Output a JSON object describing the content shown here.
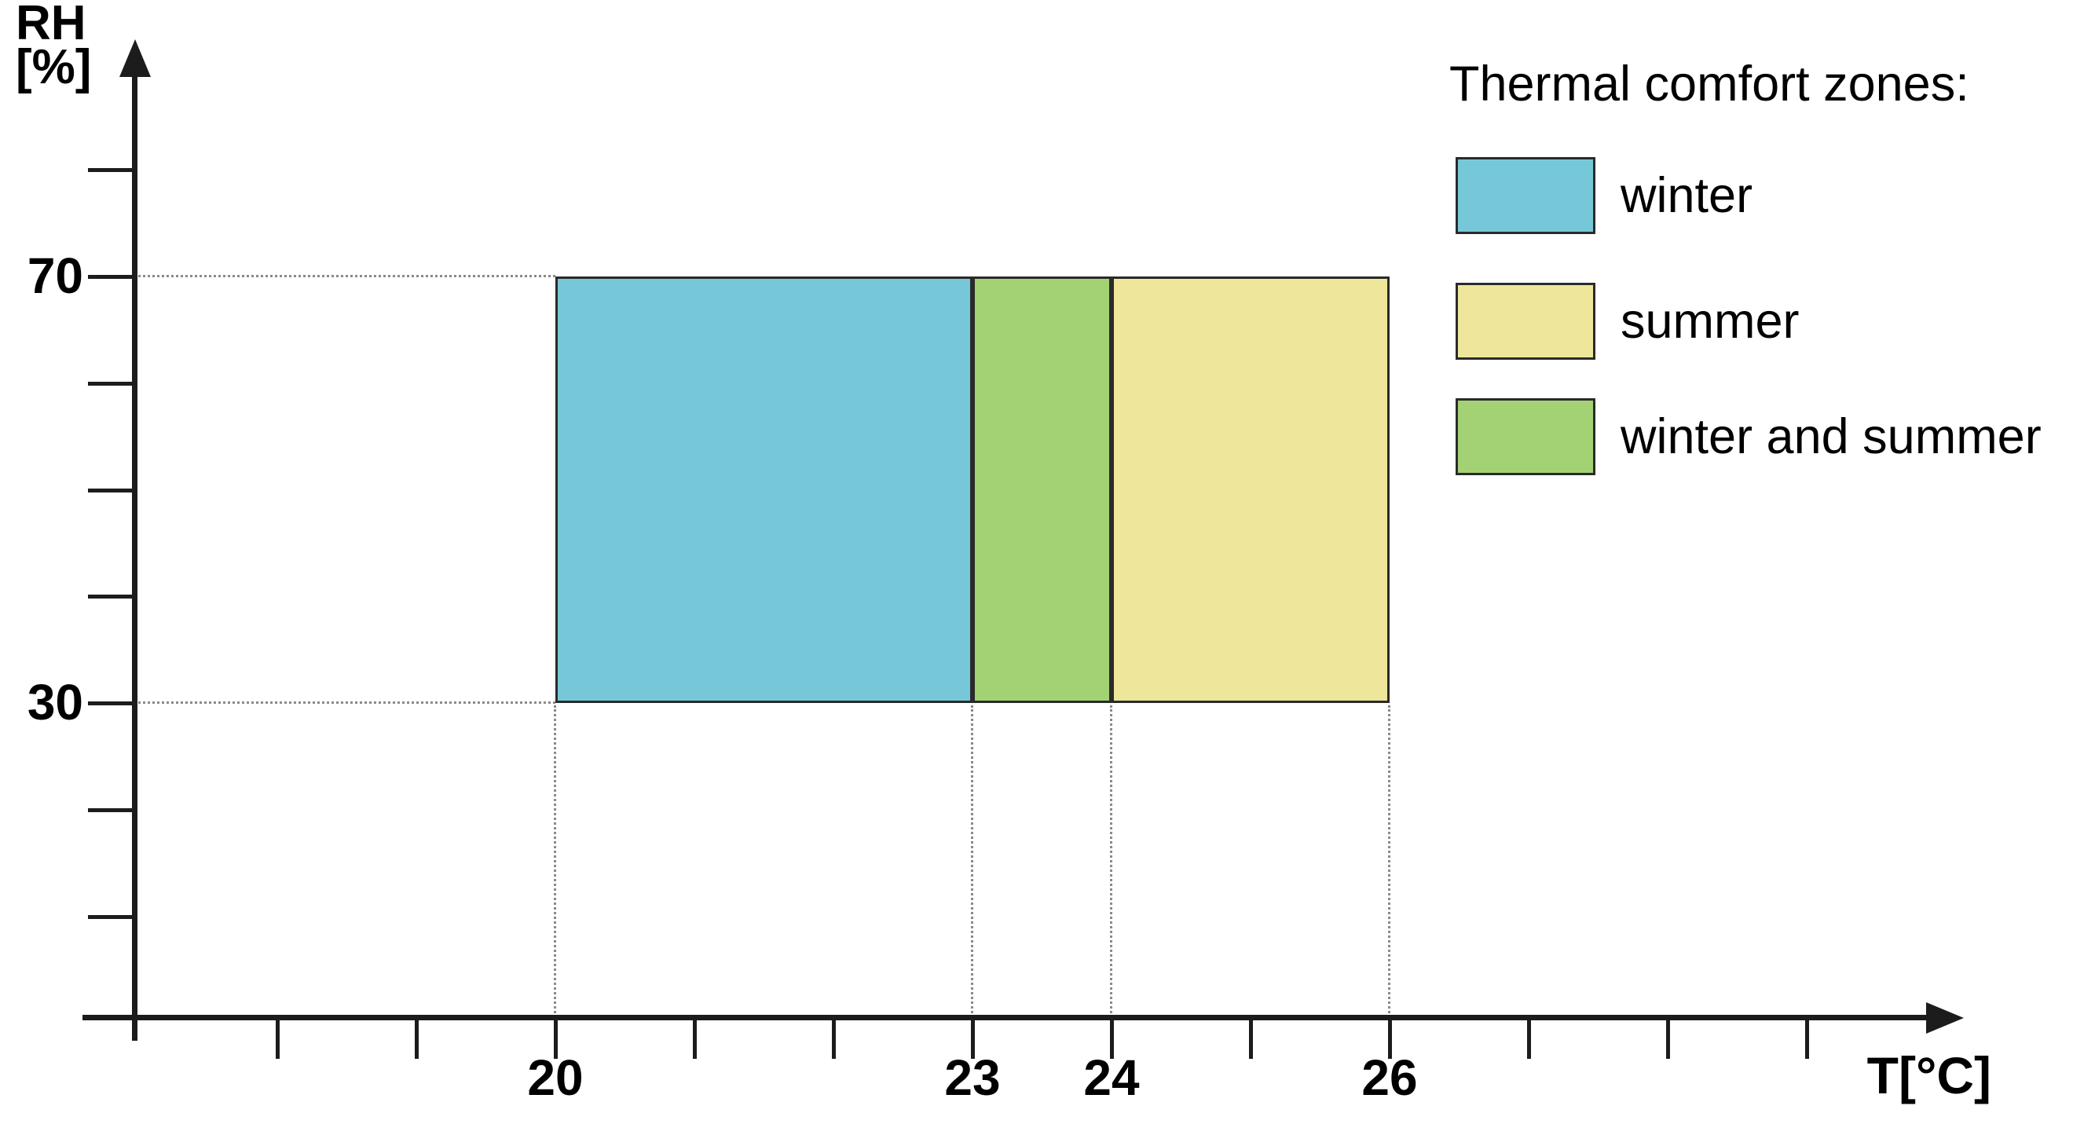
{
  "chart_data": {
    "type": "area",
    "title": "",
    "xlabel": "T[°C]",
    "ylabel_lines": [
      "RH",
      "[%]"
    ],
    "x_axis": {
      "unit": "°C",
      "range_shown": [
        17,
        30
      ],
      "ticks": [
        {
          "value": 18,
          "label": ""
        },
        {
          "value": 19,
          "label": ""
        },
        {
          "value": 20,
          "label": "20"
        },
        {
          "value": 21,
          "label": ""
        },
        {
          "value": 22,
          "label": ""
        },
        {
          "value": 23,
          "label": "23"
        },
        {
          "value": 24,
          "label": "24"
        },
        {
          "value": 25,
          "label": ""
        },
        {
          "value": 26,
          "label": "26"
        },
        {
          "value": 27,
          "label": ""
        },
        {
          "value": 28,
          "label": ""
        },
        {
          "value": 29,
          "label": ""
        }
      ]
    },
    "y_axis": {
      "unit": "%",
      "range_shown": [
        0,
        90
      ],
      "ticks": [
        {
          "value": 10,
          "label": ""
        },
        {
          "value": 20,
          "label": ""
        },
        {
          "value": 30,
          "label": "30"
        },
        {
          "value": 40,
          "label": ""
        },
        {
          "value": 50,
          "label": ""
        },
        {
          "value": 60,
          "label": ""
        },
        {
          "value": 70,
          "label": "70"
        },
        {
          "value": 80,
          "label": ""
        }
      ]
    },
    "zones": [
      {
        "name": "winter",
        "t_min": 20,
        "t_max": 23,
        "rh_min": 30,
        "rh_max": 70,
        "color": "#76C8D9"
      },
      {
        "name": "winter and summer",
        "t_min": 23,
        "t_max": 24,
        "rh_min": 30,
        "rh_max": 70,
        "color": "#A3D274"
      },
      {
        "name": "summer",
        "t_min": 24,
        "t_max": 26,
        "rh_min": 30,
        "rh_max": 70,
        "color": "#EEE69A"
      }
    ],
    "guides": {
      "vertical_at_t": [
        20,
        23,
        24,
        26
      ],
      "horizontal_at_rh": [
        30,
        70
      ]
    },
    "legend": {
      "title": "Thermal comfort zones:",
      "items": [
        {
          "label": "winter",
          "color": "#76C8D9"
        },
        {
          "label": "summer",
          "color": "#EEE69A"
        },
        {
          "label": "winter and summer",
          "color": "#A3D274"
        }
      ]
    },
    "colors": {
      "axis": "#1c1c1c",
      "guide_dots": "#8a8a8a",
      "zone_border": "#2a2a2a",
      "text": "#000000",
      "background": "#ffffff"
    }
  }
}
